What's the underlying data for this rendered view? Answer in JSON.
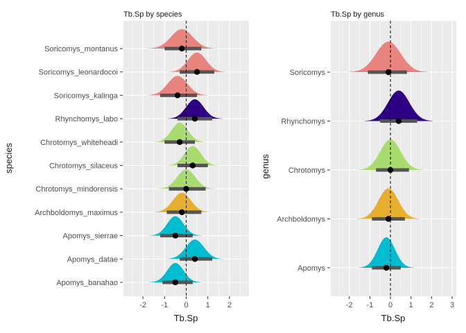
{
  "chart_data": [
    {
      "type": "density-ridgeline",
      "title": "Tb.Sp by species",
      "xlabel": "Tb.Sp",
      "ylabel": "species",
      "xlim": [
        -2.9,
        2.9
      ],
      "xticks": [
        "-2",
        "-1",
        "0",
        "1",
        "2"
      ],
      "xtick_values": [
        -2,
        -1,
        0,
        1,
        2
      ],
      "reference_line_x": 0,
      "grid": true,
      "categories": [
        {
          "label": "Soricomys_montanus",
          "mean": -0.2,
          "sd": 0.5,
          "interval": [
            -1.0,
            0.7
          ],
          "color": "#E8837E"
        },
        {
          "label": "Soricomys_leonardocoi",
          "mean": 0.5,
          "sd": 0.42,
          "interval": [
            -0.3,
            1.3
          ],
          "color": "#E8837E"
        },
        {
          "label": "Soricomys_kalinga",
          "mean": -0.4,
          "sd": 0.45,
          "interval": [
            -1.2,
            0.5
          ],
          "color": "#E8837E"
        },
        {
          "label": "Rhynchomys_labo",
          "mean": 0.4,
          "sd": 0.4,
          "interval": [
            -0.4,
            1.2
          ],
          "color": "#2D0085"
        },
        {
          "label": "Chrotomys_whiteheadi",
          "mean": -0.3,
          "sd": 0.38,
          "interval": [
            -1.0,
            0.4
          ],
          "color": "#A8DC6E"
        },
        {
          "label": "Chrotomys_silaceus",
          "mean": 0.3,
          "sd": 0.38,
          "interval": [
            -0.4,
            1.0
          ],
          "color": "#A8DC6E"
        },
        {
          "label": "Chrotomys_mindorensis",
          "mean": 0.0,
          "sd": 0.42,
          "interval": [
            -0.8,
            0.9
          ],
          "color": "#A8DC6E"
        },
        {
          "label": "Archboldomys_maximus",
          "mean": -0.2,
          "sd": 0.42,
          "interval": [
            -0.9,
            0.7
          ],
          "color": "#E6B02E"
        },
        {
          "label": "Apomys_sierrae",
          "mean": -0.5,
          "sd": 0.38,
          "interval": [
            -1.2,
            0.3
          ],
          "color": "#00BCD0"
        },
        {
          "label": "Apomys_datae",
          "mean": 0.4,
          "sd": 0.42,
          "interval": [
            -0.3,
            1.2
          ],
          "color": "#00BCD0"
        },
        {
          "label": "Apomys_banahao",
          "mean": -0.5,
          "sd": 0.38,
          "interval": [
            -1.1,
            0.3
          ],
          "color": "#00BCD0"
        }
      ]
    },
    {
      "type": "density-ridgeline",
      "title": "Tb.Sp by genus",
      "xlabel": "Tb.Sp",
      "ylabel": "genus",
      "xlim": [
        -2.9,
        3.2
      ],
      "xticks": [
        "-2",
        "-1",
        "0",
        "1",
        "2",
        "3"
      ],
      "xtick_values": [
        -2,
        -1,
        0,
        1,
        2,
        3
      ],
      "reference_line_x": 0,
      "grid": true,
      "categories": [
        {
          "label": "Soricomys",
          "mean": -0.1,
          "sd": 0.6,
          "interval": [
            -1.1,
            0.8
          ],
          "color": "#E8837E"
        },
        {
          "label": "Rhynchomys",
          "mean": 0.4,
          "sd": 0.52,
          "interval": [
            -0.5,
            1.3
          ],
          "color": "#2D0085"
        },
        {
          "label": "Chrotomys",
          "mean": 0.0,
          "sd": 0.5,
          "interval": [
            -0.7,
            0.9
          ],
          "color": "#A8DC6E"
        },
        {
          "label": "Archboldomys",
          "mean": -0.1,
          "sd": 0.48,
          "interval": [
            -0.9,
            0.7
          ],
          "color": "#E6B02E"
        },
        {
          "label": "Apomys",
          "mean": -0.2,
          "sd": 0.42,
          "interval": [
            -0.9,
            0.5
          ],
          "color": "#00BCD0"
        }
      ]
    }
  ]
}
